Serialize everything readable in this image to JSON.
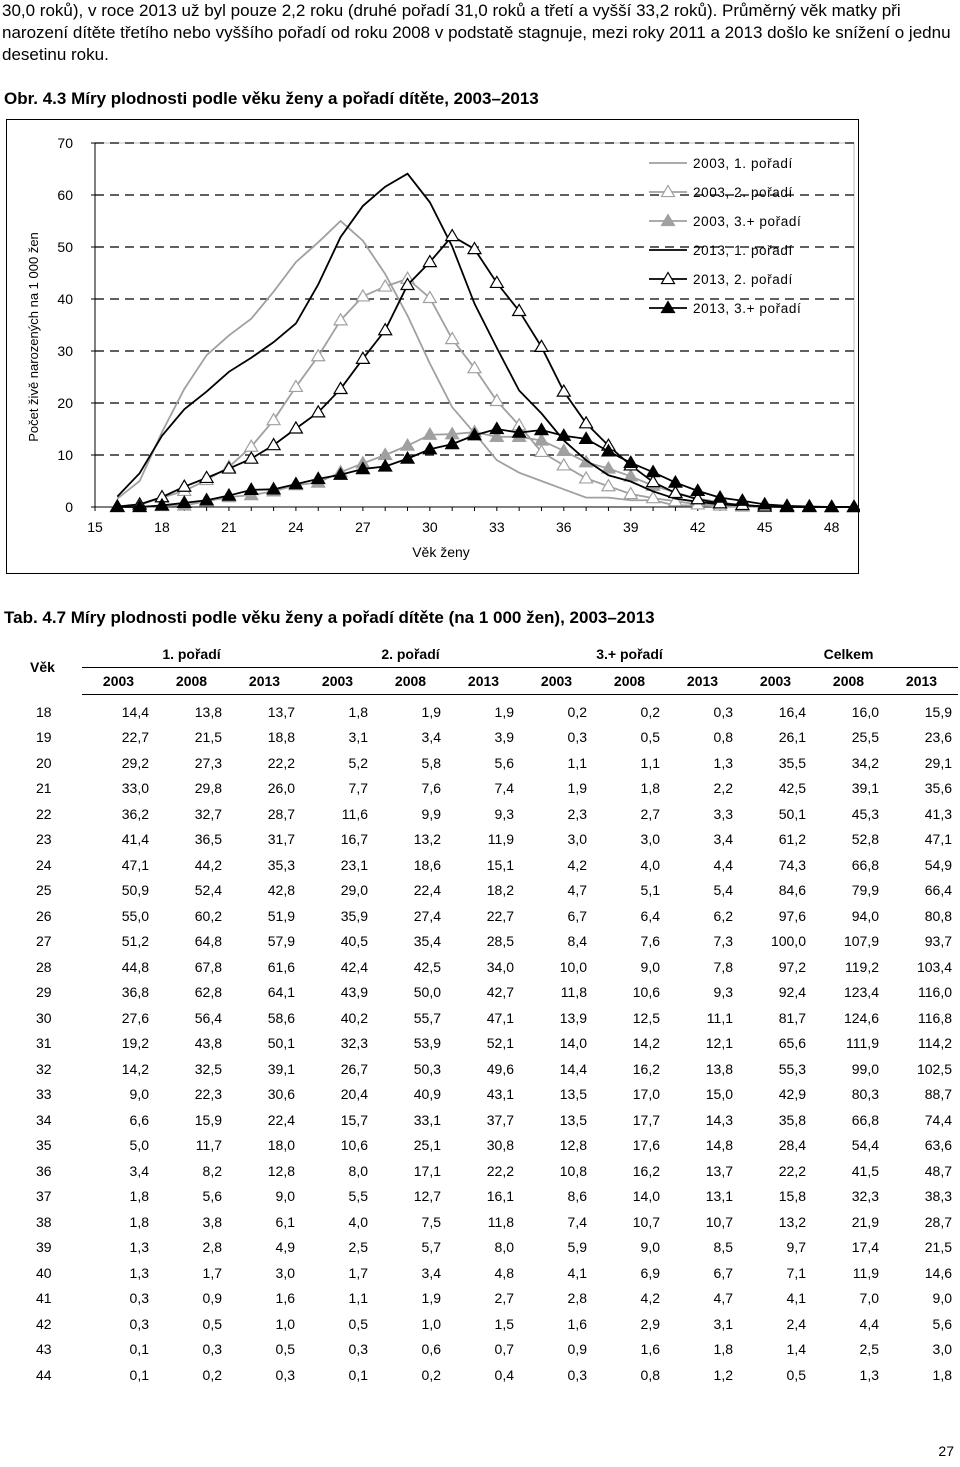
{
  "intro_text": "30,0 roků), v roce 2013 už byl pouze 2,2 roku (druhé pořadí 31,0 roků a třetí a vyšší 33,2 roků). Průměrný věk matky při narození dítěte třetího nebo vyššího pořadí od roku 2008 v podstatě stagnuje, mezi roky 2011 a 2013 došlo ke snížení o jednu desetinu roku.",
  "figure_title": "Obr. 4.3 Míry plodnosti podle věku ženy a pořadí dítěte, 2003–2013",
  "chart_data": {
    "type": "line",
    "xlabel": "Věk ženy",
    "ylabel": "Počet živě narozených na 1 000 žen",
    "x_ticks": [
      15,
      18,
      21,
      24,
      27,
      30,
      33,
      36,
      39,
      42,
      45,
      48
    ],
    "y_ticks": [
      0,
      10,
      20,
      30,
      40,
      50,
      60,
      70
    ],
    "xlim": [
      15,
      49
    ],
    "ylim": [
      0,
      70
    ],
    "legend_position": "top-right",
    "x": [
      16,
      17,
      18,
      19,
      20,
      21,
      22,
      23,
      24,
      25,
      26,
      27,
      28,
      29,
      30,
      31,
      32,
      33,
      34,
      35,
      36,
      37,
      38,
      39,
      40,
      41,
      42,
      43,
      44,
      45,
      46,
      47,
      48,
      49
    ],
    "series": [
      {
        "name": "2003, 1. pořadí",
        "color": "#a0a0a0",
        "marker": "none",
        "values": [
          1.6,
          5.0,
          14.4,
          22.7,
          29.2,
          33.0,
          36.2,
          41.4,
          47.1,
          50.9,
          55.0,
          51.2,
          44.8,
          36.8,
          27.6,
          19.2,
          14.2,
          9.0,
          6.6,
          5.0,
          3.4,
          1.8,
          1.8,
          1.3,
          1.3,
          0.3,
          0.3,
          0.1,
          0.1,
          0.0,
          0.0,
          0.0,
          0.0,
          0.0
        ]
      },
      {
        "name": "2003, 2. pořadí",
        "color": "#a0a0a0",
        "marker": "open-triangle",
        "values": [
          0.1,
          0.4,
          1.8,
          3.1,
          5.2,
          7.7,
          11.6,
          16.7,
          23.1,
          29.0,
          35.9,
          40.5,
          42.4,
          43.9,
          40.2,
          32.3,
          26.7,
          20.4,
          15.7,
          10.6,
          8.0,
          5.5,
          4.0,
          2.5,
          1.7,
          1.1,
          0.5,
          0.3,
          0.1,
          0.0,
          0.0,
          0.0,
          0.0,
          0.0
        ]
      },
      {
        "name": "2003, 3.+ pořadí",
        "color": "#a0a0a0",
        "marker": "filled-triangle",
        "values": [
          0.0,
          0.0,
          0.2,
          0.3,
          1.1,
          1.9,
          2.3,
          3.0,
          4.2,
          4.7,
          6.7,
          8.4,
          10.0,
          11.8,
          13.9,
          14.0,
          14.4,
          13.5,
          13.5,
          12.8,
          10.8,
          8.6,
          7.4,
          5.9,
          4.1,
          2.8,
          1.6,
          0.9,
          0.3,
          0.1,
          0.0,
          0.0,
          0.0,
          0.0
        ]
      },
      {
        "name": "2013, 1. pořadí",
        "color": "#000000",
        "marker": "none",
        "values": [
          2.0,
          6.5,
          13.7,
          18.8,
          22.2,
          26.0,
          28.7,
          31.7,
          35.3,
          42.8,
          51.9,
          57.9,
          61.6,
          64.1,
          58.6,
          50.1,
          39.1,
          30.6,
          22.4,
          18.0,
          12.8,
          9.0,
          6.1,
          4.9,
          3.0,
          1.6,
          1.0,
          0.5,
          0.3,
          0.1,
          0.0,
          0.0,
          0.0,
          0.0
        ]
      },
      {
        "name": "2013, 2. pořadí",
        "color": "#000000",
        "marker": "open-triangle",
        "values": [
          0.1,
          0.5,
          1.9,
          3.9,
          5.6,
          7.4,
          9.3,
          11.9,
          15.1,
          18.2,
          22.7,
          28.5,
          34.0,
          42.7,
          47.1,
          52.1,
          49.6,
          43.1,
          37.7,
          30.8,
          22.2,
          16.1,
          11.8,
          8.0,
          4.8,
          2.7,
          1.5,
          0.7,
          0.4,
          0.1,
          0.0,
          0.0,
          0.0,
          0.0
        ]
      },
      {
        "name": "2013, 3.+ pořadí",
        "color": "#000000",
        "marker": "filled-triangle",
        "values": [
          0.0,
          0.0,
          0.3,
          0.8,
          1.3,
          2.2,
          3.3,
          3.4,
          4.4,
          5.4,
          6.2,
          7.3,
          7.8,
          9.3,
          11.1,
          12.1,
          13.8,
          15.0,
          14.3,
          14.8,
          13.7,
          13.1,
          10.7,
          8.5,
          6.7,
          4.7,
          3.1,
          1.8,
          1.2,
          0.5,
          0.2,
          0.1,
          0.0,
          0.0
        ]
      }
    ]
  },
  "table_title": "Tab. 4.7 Míry plodnosti podle věku ženy a pořadí dítěte (na 1 000 žen), 2003–2013",
  "table": {
    "age_header": "Věk",
    "groups": [
      "1. pořadí",
      "2. pořadí",
      "3.+ pořadí",
      "Celkem"
    ],
    "years": [
      "2003",
      "2008",
      "2013",
      "2003",
      "2008",
      "2013",
      "2003",
      "2008",
      "2013",
      "2003",
      "2008",
      "2013"
    ],
    "rows": [
      [
        "18",
        "14,4",
        "13,8",
        "13,7",
        "1,8",
        "1,9",
        "1,9",
        "0,2",
        "0,2",
        "0,3",
        "16,4",
        "16,0",
        "15,9"
      ],
      [
        "19",
        "22,7",
        "21,5",
        "18,8",
        "3,1",
        "3,4",
        "3,9",
        "0,3",
        "0,5",
        "0,8",
        "26,1",
        "25,5",
        "23,6"
      ],
      [
        "20",
        "29,2",
        "27,3",
        "22,2",
        "5,2",
        "5,8",
        "5,6",
        "1,1",
        "1,1",
        "1,3",
        "35,5",
        "34,2",
        "29,1"
      ],
      [
        "21",
        "33,0",
        "29,8",
        "26,0",
        "7,7",
        "7,6",
        "7,4",
        "1,9",
        "1,8",
        "2,2",
        "42,5",
        "39,1",
        "35,6"
      ],
      [
        "22",
        "36,2",
        "32,7",
        "28,7",
        "11,6",
        "9,9",
        "9,3",
        "2,3",
        "2,7",
        "3,3",
        "50,1",
        "45,3",
        "41,3"
      ],
      [
        "23",
        "41,4",
        "36,5",
        "31,7",
        "16,7",
        "13,2",
        "11,9",
        "3,0",
        "3,0",
        "3,4",
        "61,2",
        "52,8",
        "47,1"
      ],
      [
        "24",
        "47,1",
        "44,2",
        "35,3",
        "23,1",
        "18,6",
        "15,1",
        "4,2",
        "4,0",
        "4,4",
        "74,3",
        "66,8",
        "54,9"
      ],
      [
        "25",
        "50,9",
        "52,4",
        "42,8",
        "29,0",
        "22,4",
        "18,2",
        "4,7",
        "5,1",
        "5,4",
        "84,6",
        "79,9",
        "66,4"
      ],
      [
        "26",
        "55,0",
        "60,2",
        "51,9",
        "35,9",
        "27,4",
        "22,7",
        "6,7",
        "6,4",
        "6,2",
        "97,6",
        "94,0",
        "80,8"
      ],
      [
        "27",
        "51,2",
        "64,8",
        "57,9",
        "40,5",
        "35,4",
        "28,5",
        "8,4",
        "7,6",
        "7,3",
        "100,0",
        "107,9",
        "93,7"
      ],
      [
        "28",
        "44,8",
        "67,8",
        "61,6",
        "42,4",
        "42,5",
        "34,0",
        "10,0",
        "9,0",
        "7,8",
        "97,2",
        "119,2",
        "103,4"
      ],
      [
        "29",
        "36,8",
        "62,8",
        "64,1",
        "43,9",
        "50,0",
        "42,7",
        "11,8",
        "10,6",
        "9,3",
        "92,4",
        "123,4",
        "116,0"
      ],
      [
        "30",
        "27,6",
        "56,4",
        "58,6",
        "40,2",
        "55,7",
        "47,1",
        "13,9",
        "12,5",
        "11,1",
        "81,7",
        "124,6",
        "116,8"
      ],
      [
        "31",
        "19,2",
        "43,8",
        "50,1",
        "32,3",
        "53,9",
        "52,1",
        "14,0",
        "14,2",
        "12,1",
        "65,6",
        "111,9",
        "114,2"
      ],
      [
        "32",
        "14,2",
        "32,5",
        "39,1",
        "26,7",
        "50,3",
        "49,6",
        "14,4",
        "16,2",
        "13,8",
        "55,3",
        "99,0",
        "102,5"
      ],
      [
        "33",
        "9,0",
        "22,3",
        "30,6",
        "20,4",
        "40,9",
        "43,1",
        "13,5",
        "17,0",
        "15,0",
        "42,9",
        "80,3",
        "88,7"
      ],
      [
        "34",
        "6,6",
        "15,9",
        "22,4",
        "15,7",
        "33,1",
        "37,7",
        "13,5",
        "17,7",
        "14,3",
        "35,8",
        "66,8",
        "74,4"
      ],
      [
        "35",
        "5,0",
        "11,7",
        "18,0",
        "10,6",
        "25,1",
        "30,8",
        "12,8",
        "17,6",
        "14,8",
        "28,4",
        "54,4",
        "63,6"
      ],
      [
        "36",
        "3,4",
        "8,2",
        "12,8",
        "8,0",
        "17,1",
        "22,2",
        "10,8",
        "16,2",
        "13,7",
        "22,2",
        "41,5",
        "48,7"
      ],
      [
        "37",
        "1,8",
        "5,6",
        "9,0",
        "5,5",
        "12,7",
        "16,1",
        "8,6",
        "14,0",
        "13,1",
        "15,8",
        "32,3",
        "38,3"
      ],
      [
        "38",
        "1,8",
        "3,8",
        "6,1",
        "4,0",
        "7,5",
        "11,8",
        "7,4",
        "10,7",
        "10,7",
        "13,2",
        "21,9",
        "28,7"
      ],
      [
        "39",
        "1,3",
        "2,8",
        "4,9",
        "2,5",
        "5,7",
        "8,0",
        "5,9",
        "9,0",
        "8,5",
        "9,7",
        "17,4",
        "21,5"
      ],
      [
        "40",
        "1,3",
        "1,7",
        "3,0",
        "1,7",
        "3,4",
        "4,8",
        "4,1",
        "6,9",
        "6,7",
        "7,1",
        "11,9",
        "14,6"
      ],
      [
        "41",
        "0,3",
        "0,9",
        "1,6",
        "1,1",
        "1,9",
        "2,7",
        "2,8",
        "4,2",
        "4,7",
        "4,1",
        "7,0",
        "9,0"
      ],
      [
        "42",
        "0,3",
        "0,5",
        "1,0",
        "0,5",
        "1,0",
        "1,5",
        "1,6",
        "2,9",
        "3,1",
        "2,4",
        "4,4",
        "5,6"
      ],
      [
        "43",
        "0,1",
        "0,3",
        "0,5",
        "0,3",
        "0,6",
        "0,7",
        "0,9",
        "1,6",
        "1,8",
        "1,4",
        "2,5",
        "3,0"
      ],
      [
        "44",
        "0,1",
        "0,2",
        "0,3",
        "0,1",
        "0,2",
        "0,4",
        "0,3",
        "0,8",
        "1,2",
        "0,5",
        "1,3",
        "1,8"
      ]
    ]
  },
  "page_number": "27"
}
